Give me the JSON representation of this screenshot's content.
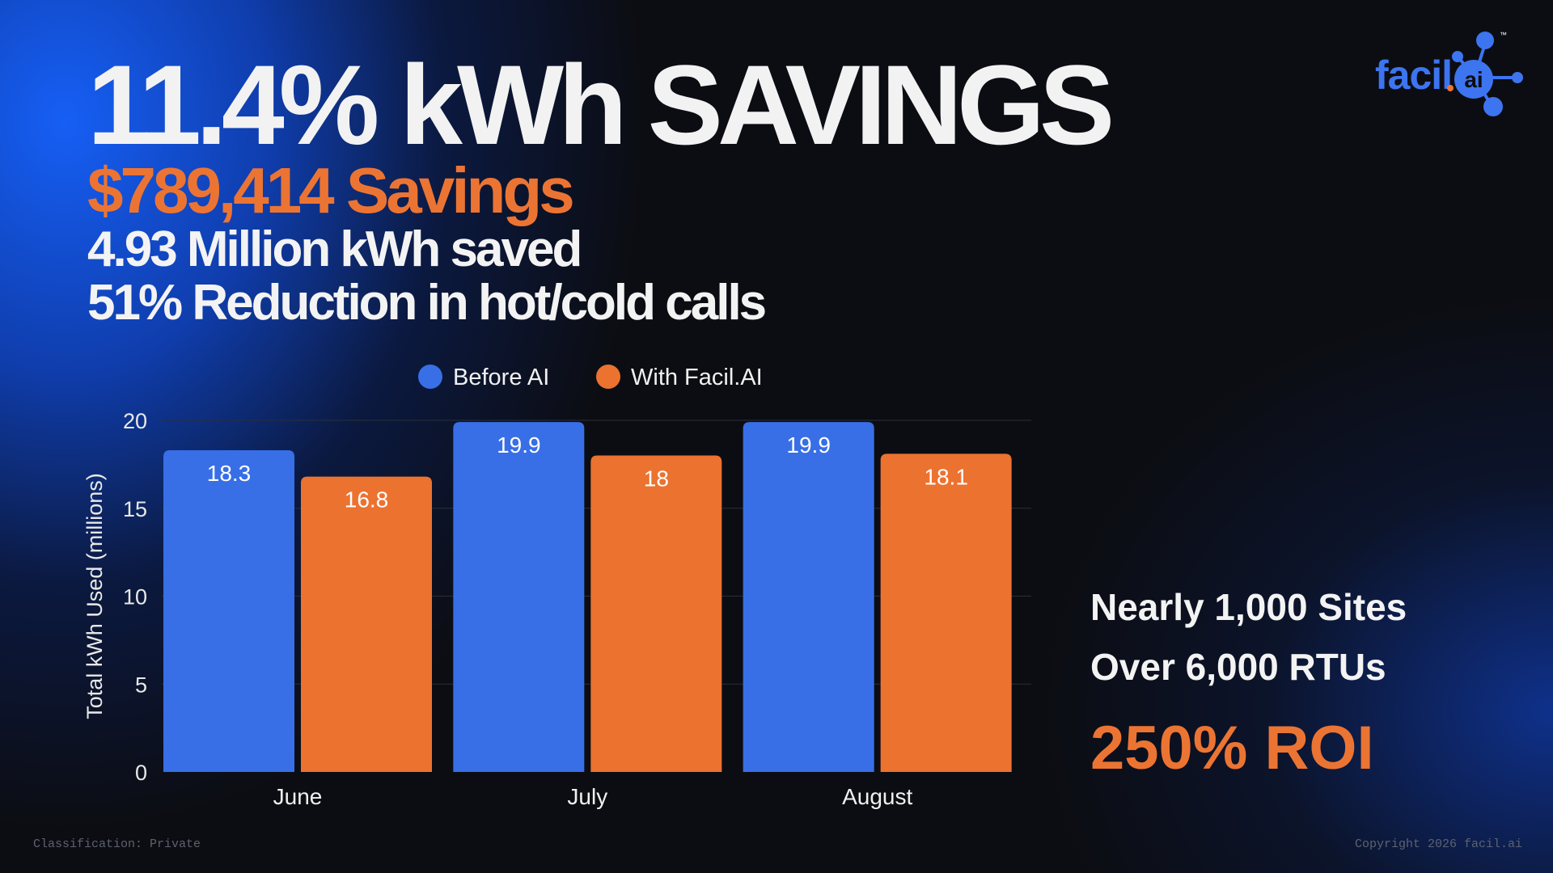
{
  "header": {
    "headline": "11.4% kWh SAVINGS",
    "savings": "$789,414 Savings",
    "kwh_saved": "4.93 Million kWh saved",
    "calls_reduction": "51% Reduction in hot/cold calls"
  },
  "logo": {
    "text": "facil",
    "ai": "ai",
    "trademark": "™",
    "icon": "network-nodes-icon",
    "color": "#3d74f0"
  },
  "chart_data": {
    "type": "bar",
    "categories": [
      "June",
      "July",
      "August"
    ],
    "series": [
      {
        "name": "Before AI",
        "values": [
          18.3,
          19.9,
          19.9
        ],
        "labels": [
          "18.3",
          "19.9",
          "19.9"
        ],
        "color": "#386fe6"
      },
      {
        "name": "With Facil.AI",
        "values": [
          16.8,
          18,
          18.1
        ],
        "labels": [
          "16.8",
          "18",
          "18.1"
        ],
        "color": "#ec7230"
      }
    ],
    "xlabel": "",
    "ylabel": "Total kWh Used (millions)",
    "ylim": [
      0,
      20
    ],
    "yticks": [
      0,
      5,
      10,
      15,
      20
    ],
    "grid": true,
    "legend": "top-center",
    "data_labels": true
  },
  "stats": {
    "sites": "Nearly 1,000 Sites",
    "rtus": "Over 6,000 RTUs",
    "roi": "250% ROI"
  },
  "footer": {
    "classification": "Classification: Private",
    "copyright": "Copyright 2026 facil.ai"
  }
}
